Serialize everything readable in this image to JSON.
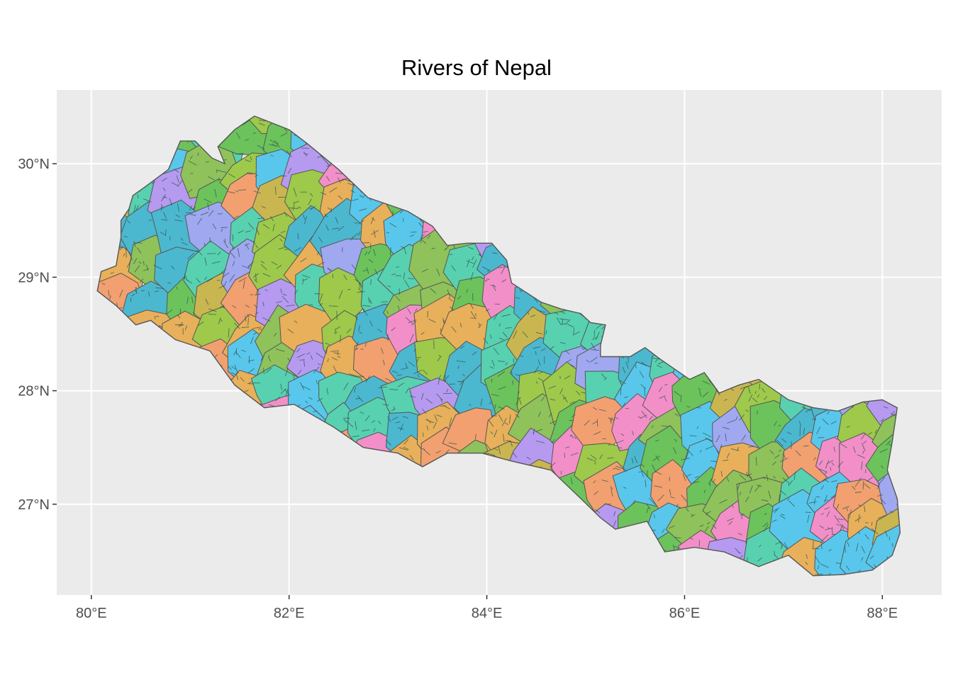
{
  "title": "Rivers of Nepal",
  "axes": {
    "x_ticks": [
      {
        "value": 80,
        "label": "80°E"
      },
      {
        "value": 82,
        "label": "82°E"
      },
      {
        "value": 84,
        "label": "84°E"
      },
      {
        "value": 86,
        "label": "86°E"
      },
      {
        "value": 88,
        "label": "88°E"
      }
    ],
    "y_ticks": [
      {
        "value": 27,
        "label": "27°N"
      },
      {
        "value": 28,
        "label": "28°N"
      },
      {
        "value": 29,
        "label": "29°N"
      },
      {
        "value": 30,
        "label": "30°N"
      }
    ],
    "x_range": [
      79.65,
      88.6
    ],
    "y_range": [
      26.2,
      30.65
    ]
  },
  "colors": {
    "panel_background": "#ebebeb",
    "grid": "#ffffff",
    "basin_outline": "#555555",
    "river_line": "#2f4f4f",
    "basin_palette": [
      "#6cc35b",
      "#f2a070",
      "#c9b650",
      "#59c7ec",
      "#f28fc8",
      "#b69af0",
      "#58d1b0",
      "#9ec94b",
      "#e8b05a",
      "#4bb8cf",
      "#a0a8f0",
      "#8fc25a"
    ]
  },
  "chart_data": {
    "type": "map",
    "title": "Rivers of Nepal",
    "xlim": [
      79.65,
      88.6
    ],
    "ylim": [
      26.2,
      30.65
    ],
    "grid": true,
    "boundary": [
      [
        80.06,
        28.88
      ],
      [
        80.1,
        29.05
      ],
      [
        80.25,
        29.1
      ],
      [
        80.3,
        29.35
      ],
      [
        80.3,
        29.5
      ],
      [
        80.38,
        29.6
      ],
      [
        80.42,
        29.72
      ],
      [
        80.55,
        29.8
      ],
      [
        80.78,
        29.95
      ],
      [
        80.9,
        30.2
      ],
      [
        81.05,
        30.2
      ],
      [
        81.22,
        30.05
      ],
      [
        81.35,
        30.0
      ],
      [
        81.28,
        30.15
      ],
      [
        81.45,
        30.3
      ],
      [
        81.65,
        30.42
      ],
      [
        82.0,
        30.3
      ],
      [
        82.18,
        30.18
      ],
      [
        82.5,
        29.95
      ],
      [
        82.8,
        29.7
      ],
      [
        83.2,
        29.58
      ],
      [
        83.45,
        29.45
      ],
      [
        83.6,
        29.28
      ],
      [
        83.8,
        29.3
      ],
      [
        84.05,
        29.3
      ],
      [
        84.2,
        29.15
      ],
      [
        84.25,
        28.95
      ],
      [
        84.55,
        28.78
      ],
      [
        84.75,
        28.72
      ],
      [
        84.95,
        28.68
      ],
      [
        85.05,
        28.6
      ],
      [
        85.2,
        28.58
      ],
      [
        85.15,
        28.4
      ],
      [
        85.15,
        28.3
      ],
      [
        85.45,
        28.3
      ],
      [
        85.6,
        28.38
      ],
      [
        85.75,
        28.28
      ],
      [
        86.05,
        28.1
      ],
      [
        86.2,
        28.16
      ],
      [
        86.35,
        27.98
      ],
      [
        86.55,
        28.05
      ],
      [
        86.75,
        28.1
      ],
      [
        87.05,
        27.92
      ],
      [
        87.3,
        27.85
      ],
      [
        87.55,
        27.82
      ],
      [
        87.8,
        27.9
      ],
      [
        88.0,
        27.92
      ],
      [
        88.15,
        27.85
      ],
      [
        88.1,
        27.55
      ],
      [
        88.05,
        27.3
      ],
      [
        88.15,
        27.05
      ],
      [
        88.18,
        26.75
      ],
      [
        88.1,
        26.55
      ],
      [
        87.9,
        26.42
      ],
      [
        87.6,
        26.38
      ],
      [
        87.3,
        26.37
      ],
      [
        87.05,
        26.55
      ],
      [
        86.75,
        26.45
      ],
      [
        86.4,
        26.58
      ],
      [
        86.1,
        26.62
      ],
      [
        85.8,
        26.58
      ],
      [
        85.62,
        26.85
      ],
      [
        85.3,
        26.78
      ],
      [
        85.15,
        26.88
      ],
      [
        84.95,
        27.05
      ],
      [
        84.65,
        27.3
      ],
      [
        84.25,
        27.38
      ],
      [
        83.95,
        27.45
      ],
      [
        83.6,
        27.45
      ],
      [
        83.35,
        27.33
      ],
      [
        83.1,
        27.45
      ],
      [
        82.75,
        27.5
      ],
      [
        82.45,
        27.68
      ],
      [
        82.05,
        27.88
      ],
      [
        81.75,
        27.85
      ],
      [
        81.45,
        28.05
      ],
      [
        81.2,
        28.35
      ],
      [
        80.85,
        28.45
      ],
      [
        80.6,
        28.62
      ],
      [
        80.45,
        28.58
      ],
      [
        80.25,
        28.75
      ],
      [
        80.06,
        28.88
      ]
    ]
  }
}
